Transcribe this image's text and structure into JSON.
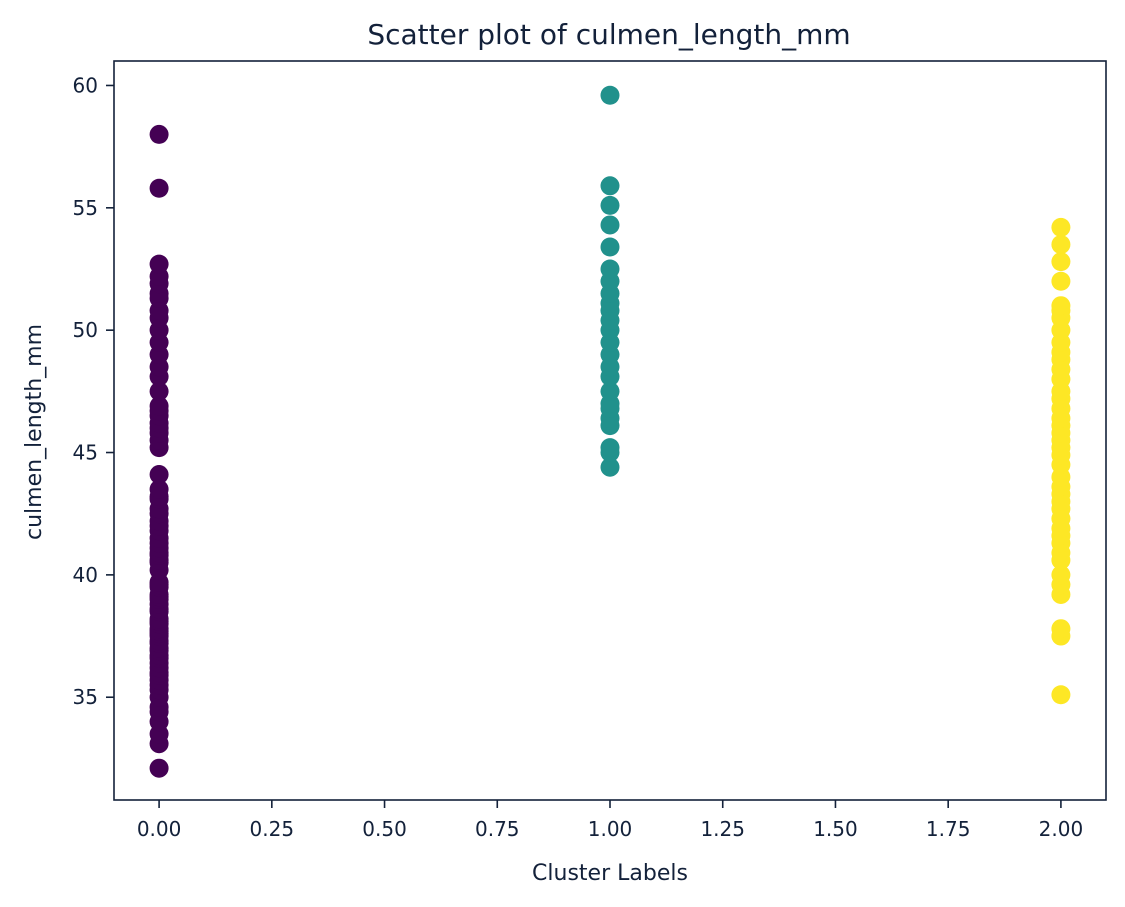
{
  "chart_data": {
    "type": "scatter",
    "title": "Scatter plot of culmen_length_mm",
    "xlabel": "Cluster Labels",
    "ylabel": "culmen_length_mm",
    "xlim": [
      -0.1,
      2.1
    ],
    "ylim": [
      30.8,
      61
    ],
    "xticks": [
      0.0,
      0.25,
      0.5,
      0.75,
      1.0,
      1.25,
      1.5,
      1.75,
      2.0
    ],
    "xtick_labels": [
      "0.00",
      "0.25",
      "0.50",
      "0.75",
      "1.00",
      "1.25",
      "1.50",
      "1.75",
      "2.00"
    ],
    "yticks": [
      35,
      40,
      45,
      50,
      55,
      60
    ],
    "ytick_labels": [
      "35",
      "40",
      "45",
      "50",
      "55",
      "60"
    ],
    "grid": false,
    "colors": {
      "0": "#440154",
      "1": "#21918c",
      "2": "#fde725",
      "axes": "#13213a"
    },
    "series": [
      {
        "x": 0,
        "values": [
          32.1,
          33.1,
          33.5,
          34.0,
          34.4,
          34.6,
          35.0,
          35.3,
          35.5,
          35.7,
          35.9,
          36.0,
          36.2,
          36.4,
          36.6,
          36.7,
          36.9,
          37.0,
          37.2,
          37.3,
          37.5,
          37.6,
          37.7,
          37.8,
          38.0,
          38.1,
          38.2,
          38.5,
          38.6,
          38.8,
          39.0,
          39.1,
          39.2,
          39.5,
          39.6,
          39.7,
          40.2,
          40.5,
          40.6,
          40.8,
          40.9,
          41.1,
          41.3,
          41.5,
          41.8,
          42.0,
          42.2,
          42.5,
          42.7,
          43.1,
          43.2,
          43.5,
          44.1,
          45.2,
          45.5,
          45.8,
          46.0,
          46.2,
          46.5,
          46.7,
          46.9,
          47.5,
          48.1,
          48.5,
          49.0,
          49.5,
          50.0,
          50.5,
          50.8,
          51.3,
          51.5,
          51.9,
          52.2,
          52.7,
          55.8,
          58.0
        ]
      },
      {
        "x": 1,
        "values": [
          44.4,
          45.0,
          45.2,
          46.1,
          46.4,
          46.8,
          47.0,
          47.5,
          48.1,
          48.5,
          49.0,
          49.5,
          50.0,
          50.4,
          50.8,
          51.1,
          51.5,
          52.0,
          52.5,
          53.4,
          54.3,
          55.1,
          55.9,
          59.6
        ]
      },
      {
        "x": 2,
        "values": [
          35.1,
          37.5,
          37.8,
          39.2,
          39.6,
          40.0,
          40.6,
          40.9,
          41.3,
          41.6,
          41.9,
          42.3,
          42.7,
          43.0,
          43.3,
          43.6,
          44.0,
          44.5,
          44.9,
          45.2,
          45.5,
          45.8,
          46.1,
          46.4,
          46.8,
          47.2,
          47.5,
          48.0,
          48.4,
          48.8,
          49.1,
          49.5,
          50.0,
          50.5,
          50.8,
          51.0,
          52.0,
          52.8,
          53.5,
          54.2
        ]
      }
    ]
  }
}
